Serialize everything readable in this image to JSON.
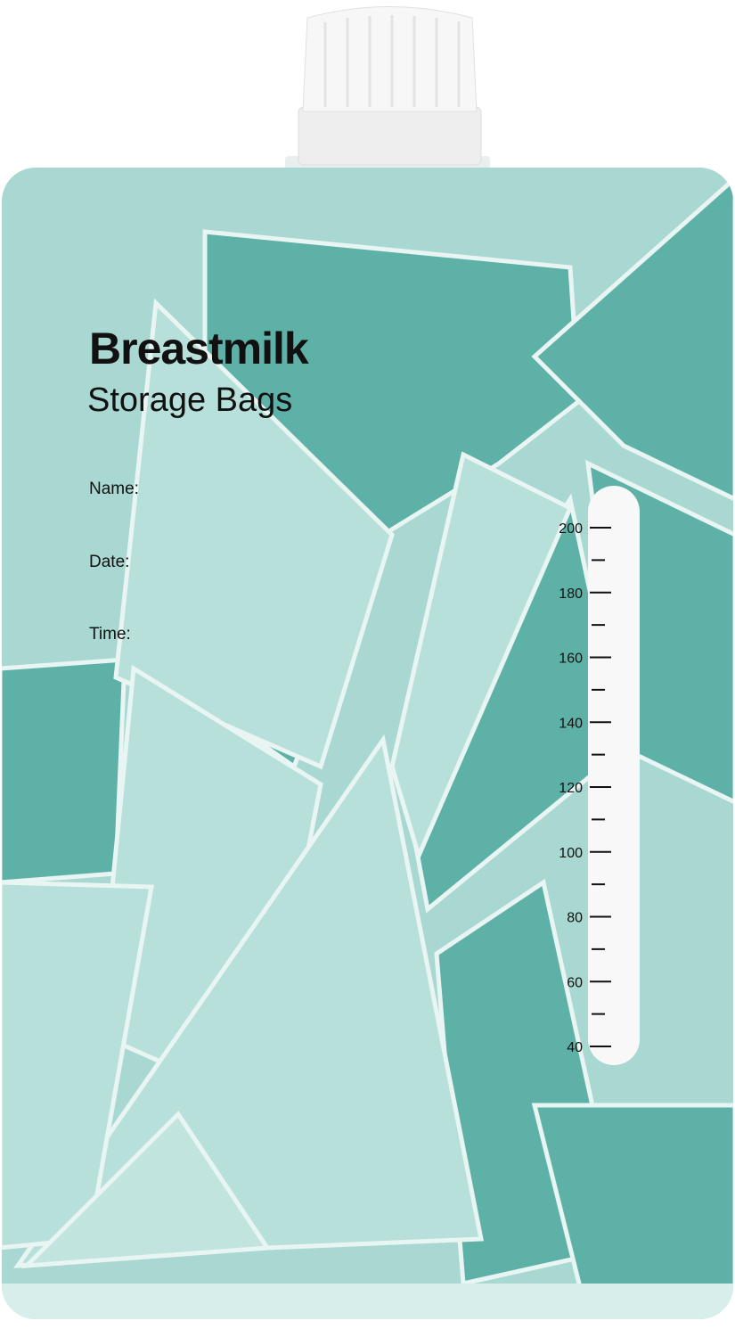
{
  "product": {
    "title": "Breastmilk",
    "subtitle": "Storage Bags",
    "fields": [
      "Name:",
      "Date:",
      "Time:"
    ]
  },
  "scale": {
    "labels": [
      "200",
      "180",
      "160",
      "140",
      "120",
      "100",
      "80",
      "60",
      "40"
    ]
  },
  "colors": {
    "light_teal": "#b4ddd8",
    "mid_teal": "#93cdc5",
    "dark_teal": "#5eb1a7",
    "cap": "#f4f4f4"
  }
}
